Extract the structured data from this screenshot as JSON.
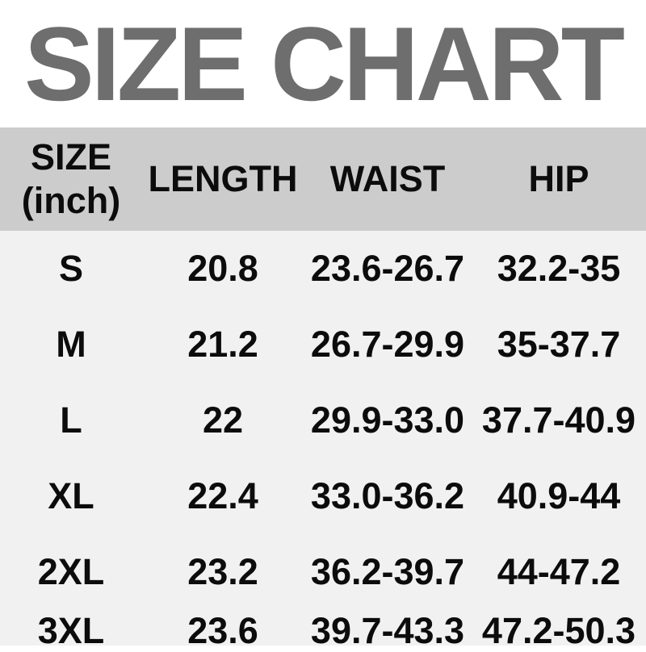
{
  "title": "SIZE CHART",
  "colors": {
    "title_text": "#6e6e6e",
    "header_bg": "#cccccc",
    "table_bg": "#f1f1f1",
    "cell_text": "#0c0c0c",
    "page_bg": "#ffffff"
  },
  "header": {
    "size_line1": "SIZE",
    "size_line2": "(inch)",
    "length": "LENGTH",
    "waist": "WAIST",
    "hip": "HIP"
  },
  "chart_data": {
    "type": "table",
    "title": "SIZE CHART",
    "unit": "inch",
    "columns": [
      "SIZE (inch)",
      "LENGTH",
      "WAIST",
      "HIP"
    ],
    "rows": [
      [
        "S",
        "20.8",
        "23.6-26.7",
        "32.2-35"
      ],
      [
        "M",
        "21.2",
        "26.7-29.9",
        "35-37.7"
      ],
      [
        "L",
        "22",
        "29.9-33.0",
        "37.7-40.9"
      ],
      [
        "XL",
        "22.4",
        "33.0-36.2",
        "40.9-44"
      ],
      [
        "2XL",
        "23.2",
        "36.2-39.7",
        "44-47.2"
      ],
      [
        "3XL",
        "23.6",
        "39.7-43.3",
        "47.2-50.3"
      ]
    ]
  }
}
